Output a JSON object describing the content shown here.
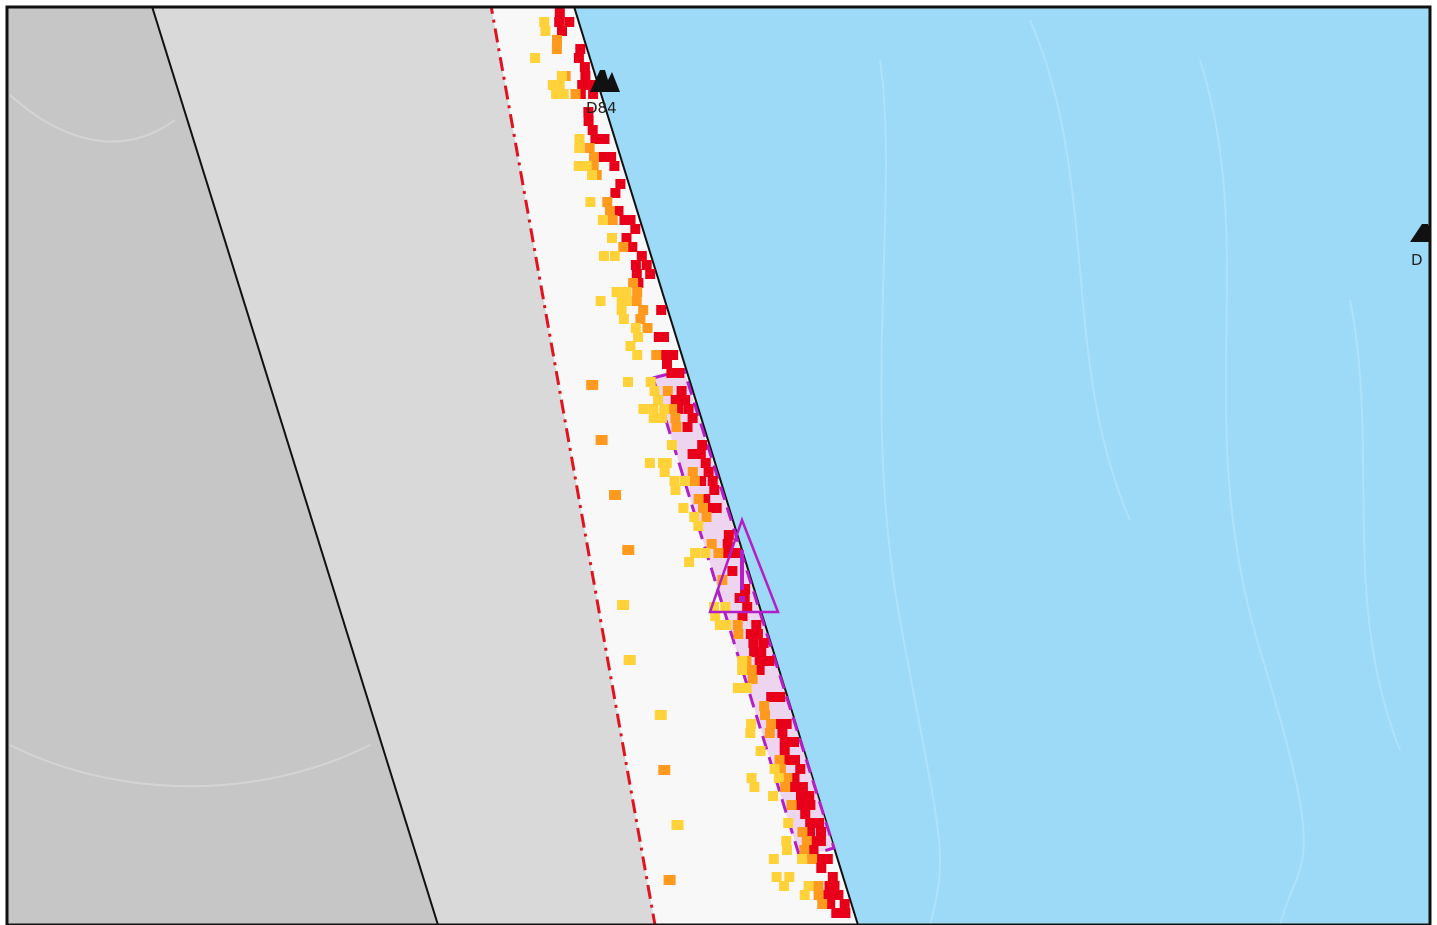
{
  "map": {
    "colors": {
      "far_land": "#c6c6c6",
      "near_land": "#d9d9d9",
      "beach": "#f8f8f8",
      "water": "#9cdaf7",
      "boundary_dashed": "#e0141e",
      "hazard_zone": "#b21fc7",
      "hazard_fill": "#e9c9ee",
      "intensity_high": "#e8001a",
      "intensity_medium": "#ff9a1f",
      "intensity_low": "#ffd23a",
      "frame": "#111111"
    },
    "labels": {
      "marker_1": "D84",
      "marker_2": "D"
    },
    "icons": {
      "marker_icon": "mountain-peak-icon",
      "warning_icon": "warning-triangle-icon"
    }
  }
}
